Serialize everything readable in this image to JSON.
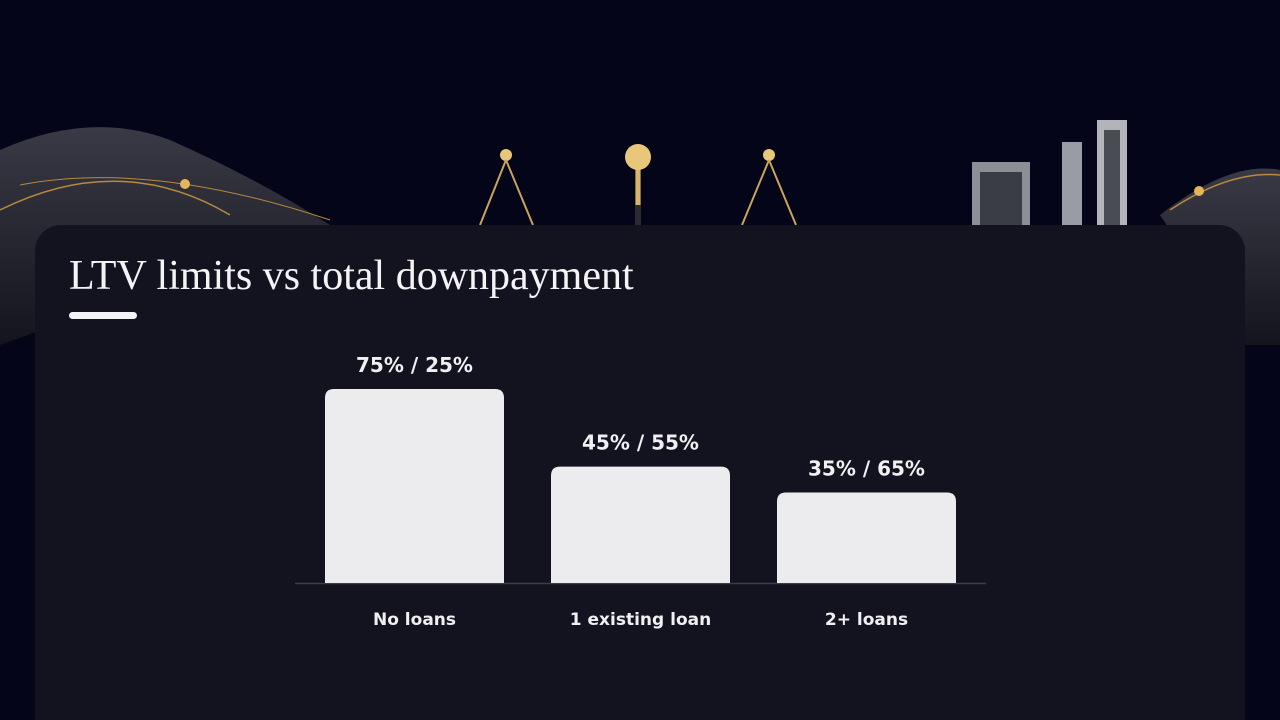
{
  "chart_data": {
    "type": "bar",
    "title": "LTV limits vs total downpayment",
    "categories": [
      "No loans",
      "1 existing loan",
      "2+ loans"
    ],
    "values": [
      75,
      45,
      35
    ],
    "value_labels": [
      "75% / 25%",
      "45% / 55%",
      "35% / 65%"
    ],
    "color": "#ececef"
  }
}
